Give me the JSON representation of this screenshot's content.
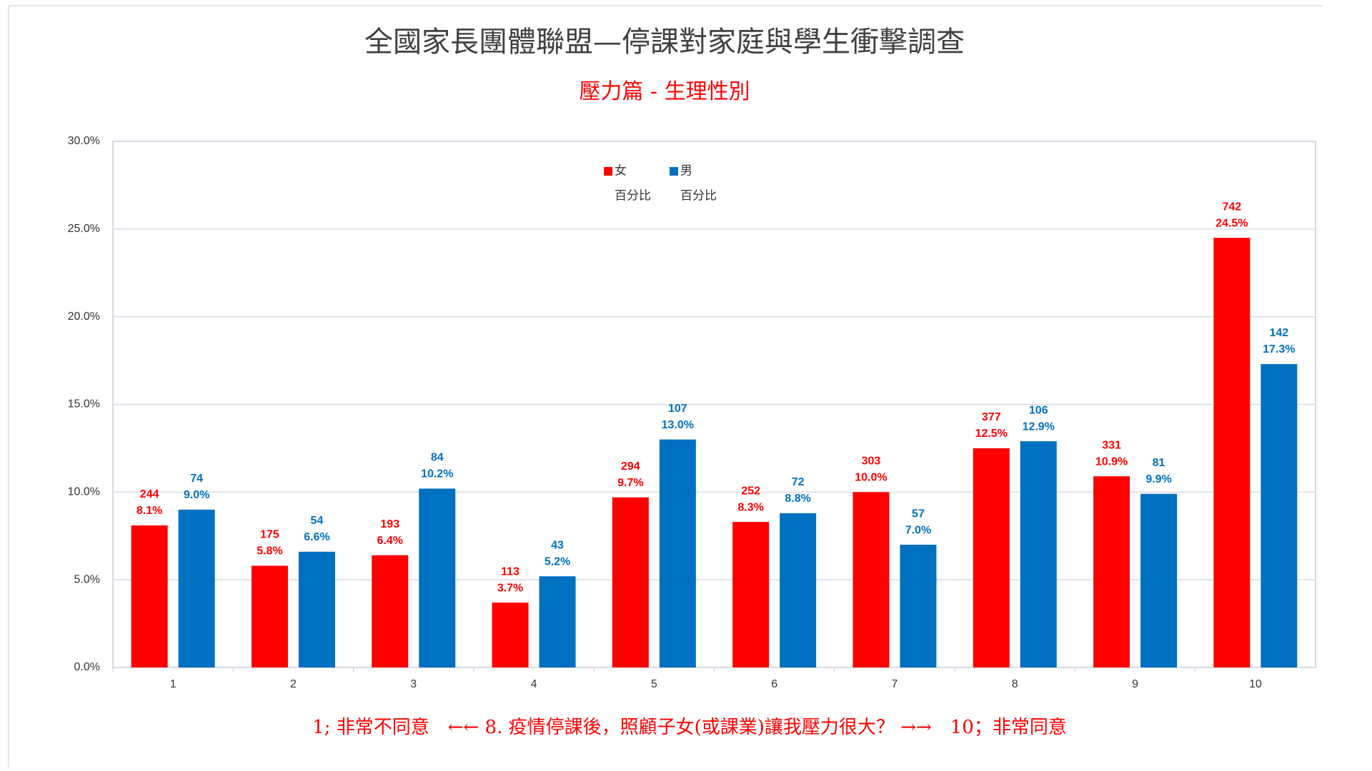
{
  "chart_data": {
    "type": "bar",
    "title": "全國家長團體聯盟—停課對家庭與學生衝擊調查",
    "subtitle": "壓力篇 - 生理性別",
    "annotation": "1;  非常不同意　←← 8. 疫情停課後，照顧子女(或課業)讓我壓力很大？ →→　10；非常同意",
    "categories": [
      "1",
      "2",
      "3",
      "4",
      "5",
      "6",
      "7",
      "8",
      "9",
      "10"
    ],
    "series": [
      {
        "name": "女",
        "name_line2": "百分比",
        "color": "#ff0000",
        "values": [
          8.1,
          5.8,
          6.4,
          3.7,
          9.7,
          8.3,
          10.0,
          12.5,
          10.9,
          24.5
        ],
        "value_labels": [
          "8.1%",
          "5.8%",
          "6.4%",
          "3.7%",
          "9.7%",
          "8.3%",
          "10.0%",
          "12.5%",
          "10.9%",
          "24.5%"
        ],
        "counts": [
          244,
          175,
          193,
          113,
          294,
          252,
          303,
          377,
          331,
          742
        ]
      },
      {
        "name": "男",
        "name_line2": "百分比",
        "color": "#0070c0",
        "values": [
          9.0,
          6.6,
          10.2,
          5.2,
          13.0,
          8.8,
          7.0,
          12.9,
          9.9,
          17.3
        ],
        "value_labels": [
          "9.0%",
          "6.6%",
          "10.2%",
          "5.2%",
          "13.0%",
          "8.8%",
          "7.0%",
          "12.9%",
          "9.9%",
          "17.3%"
        ],
        "counts": [
          74,
          54,
          84,
          43,
          107,
          72,
          57,
          106,
          81,
          142
        ]
      }
    ],
    "ylim": [
      0,
      30
    ],
    "yticks": [
      {
        "value": 0,
        "label": "0.0%"
      },
      {
        "value": 5,
        "label": "5.0%"
      },
      {
        "value": 10,
        "label": "10.0%"
      },
      {
        "value": 15,
        "label": "15.0%"
      },
      {
        "value": 20,
        "label": "20.0%"
      },
      {
        "value": 25,
        "label": "25.0%"
      },
      {
        "value": 30,
        "label": "30.0%"
      }
    ],
    "grid": true,
    "legend": "top"
  }
}
